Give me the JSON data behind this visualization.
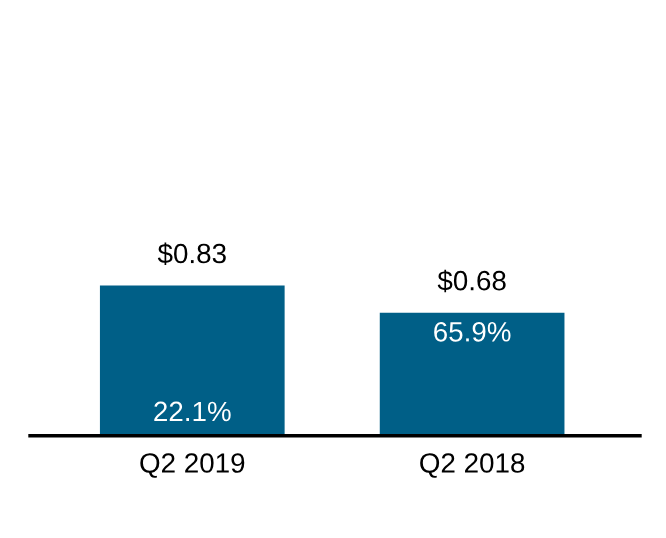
{
  "chart_data": {
    "type": "bar",
    "categories": [
      "Q2 2019",
      "Q2 2018"
    ],
    "values": [
      0.83,
      0.68
    ],
    "color": "#005f87",
    "value_labels": [
      "$0.83",
      "$0.68"
    ],
    "annotations": [
      "22.1%",
      "65.9%"
    ],
    "tick_labels": "x",
    "grid": false,
    "legend": false
  }
}
